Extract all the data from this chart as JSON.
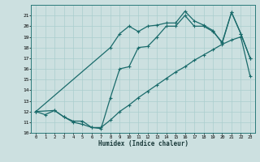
{
  "xlabel": "Humidex (Indice chaleur)",
  "bg_color": "#cce0e0",
  "grid_color": "#aacece",
  "line_color": "#1a6b6b",
  "xlim": [
    -0.5,
    23.5
  ],
  "ylim": [
    10,
    22
  ],
  "yticks": [
    10,
    11,
    12,
    13,
    14,
    15,
    16,
    17,
    18,
    19,
    20,
    21
  ],
  "xticks": [
    0,
    1,
    2,
    3,
    4,
    5,
    6,
    7,
    8,
    9,
    10,
    11,
    12,
    13,
    14,
    15,
    16,
    17,
    18,
    19,
    20,
    21,
    22,
    23
  ],
  "line1_x": [
    0,
    1,
    2,
    3,
    4,
    5,
    6,
    7,
    8,
    9,
    10,
    11,
    12,
    13,
    14,
    15,
    16,
    17,
    18,
    19,
    20,
    21,
    22,
    23
  ],
  "line1_y": [
    12.0,
    11.7,
    12.1,
    11.5,
    11.0,
    10.8,
    10.5,
    10.5,
    11.2,
    12.0,
    12.6,
    13.3,
    13.9,
    14.5,
    15.1,
    15.7,
    16.2,
    16.8,
    17.3,
    17.8,
    18.3,
    18.7,
    19.0,
    15.3
  ],
  "line2_x": [
    0,
    8,
    9,
    10,
    11,
    12,
    13,
    14,
    15,
    16,
    17,
    18,
    19,
    20,
    21,
    22,
    23
  ],
  "line2_y": [
    12.0,
    18.0,
    19.3,
    20.0,
    19.5,
    20.0,
    20.1,
    20.3,
    20.3,
    21.4,
    20.5,
    20.1,
    19.6,
    18.4,
    21.3,
    19.3,
    17.0
  ],
  "line3_x": [
    0,
    2,
    3,
    4,
    5,
    6,
    7,
    8,
    9,
    10,
    11,
    12,
    13,
    14,
    15,
    16,
    17,
    18,
    19,
    20,
    21,
    22,
    23
  ],
  "line3_y": [
    12.0,
    12.1,
    11.5,
    11.1,
    11.1,
    10.5,
    10.4,
    13.3,
    16.0,
    16.2,
    18.0,
    18.1,
    19.0,
    20.0,
    20.0,
    21.0,
    20.0,
    20.0,
    19.5,
    18.5,
    21.3,
    19.3,
    17.0
  ]
}
